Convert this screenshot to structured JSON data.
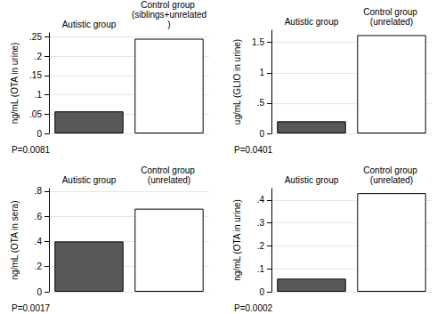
{
  "chart_data": [
    {
      "type": "bar",
      "ylabel": "ng/mL (OTA in urine)",
      "categories": [
        "Autistic group",
        "Control group (siblings+unrelated)"
      ],
      "values": [
        0.057,
        0.245
      ],
      "colors": [
        "#595959",
        "#ffffff"
      ],
      "ylim": [
        0,
        0.26
      ],
      "yticks": [
        {
          "value": 0,
          "label": "0"
        },
        {
          "value": 0.05,
          "label": ".05"
        },
        {
          "value": 0.1,
          "label": ".1"
        },
        {
          "value": 0.15,
          "label": ".15"
        },
        {
          "value": 0.2,
          "label": ".2"
        },
        {
          "value": 0.25,
          "label": ".25"
        }
      ],
      "annotations": [
        "P=0.0081"
      ],
      "grid": true
    },
    {
      "type": "bar",
      "ylabel": "ug/mL (GLIO in urine)",
      "categories": [
        "Autistic group",
        "Control group (unrelated)"
      ],
      "values": [
        0.2,
        1.62
      ],
      "colors": [
        "#595959",
        "#ffffff"
      ],
      "ylim": [
        0,
        1.7
      ],
      "yticks": [
        {
          "value": 0,
          "label": "0"
        },
        {
          "value": 0.5,
          "label": ".5"
        },
        1,
        1.5
      ],
      "annotations": [
        "P=0.0401"
      ],
      "grid": true
    },
    {
      "type": "bar",
      "ylabel": "ng/mL (OTA in sera)",
      "categories": [
        "Autistic group",
        "Control group (unrelated)"
      ],
      "values": [
        0.4,
        0.66
      ],
      "colors": [
        "#595959",
        "#ffffff"
      ],
      "ylim": [
        0,
        0.82
      ],
      "yticks": [
        {
          "value": 0,
          "label": "0"
        },
        {
          "value": 0.2,
          "label": ".2"
        },
        {
          "value": 0.4,
          "label": ".4"
        },
        {
          "value": 0.6,
          "label": ".6"
        },
        {
          "value": 0.8,
          "label": ".8"
        }
      ],
      "annotations": [
        "P=0.0017"
      ],
      "grid": true
    },
    {
      "type": "bar",
      "ylabel": "ng/mL (OTA in urine)",
      "categories": [
        "Autistic group",
        "Control group (unrelated)"
      ],
      "values": [
        0.057,
        0.43
      ],
      "colors": [
        "#595959",
        "#ffffff"
      ],
      "ylim": [
        0,
        0.45
      ],
      "yticks": [
        {
          "value": 0,
          "label": "0"
        },
        {
          "value": 0.1,
          "label": ".1"
        },
        {
          "value": 0.2,
          "label": ".2"
        },
        {
          "value": 0.3,
          "label": ".3"
        },
        {
          "value": 0.4,
          "label": ".4"
        }
      ],
      "annotations": [
        "P=0.0002"
      ],
      "grid": true
    }
  ]
}
